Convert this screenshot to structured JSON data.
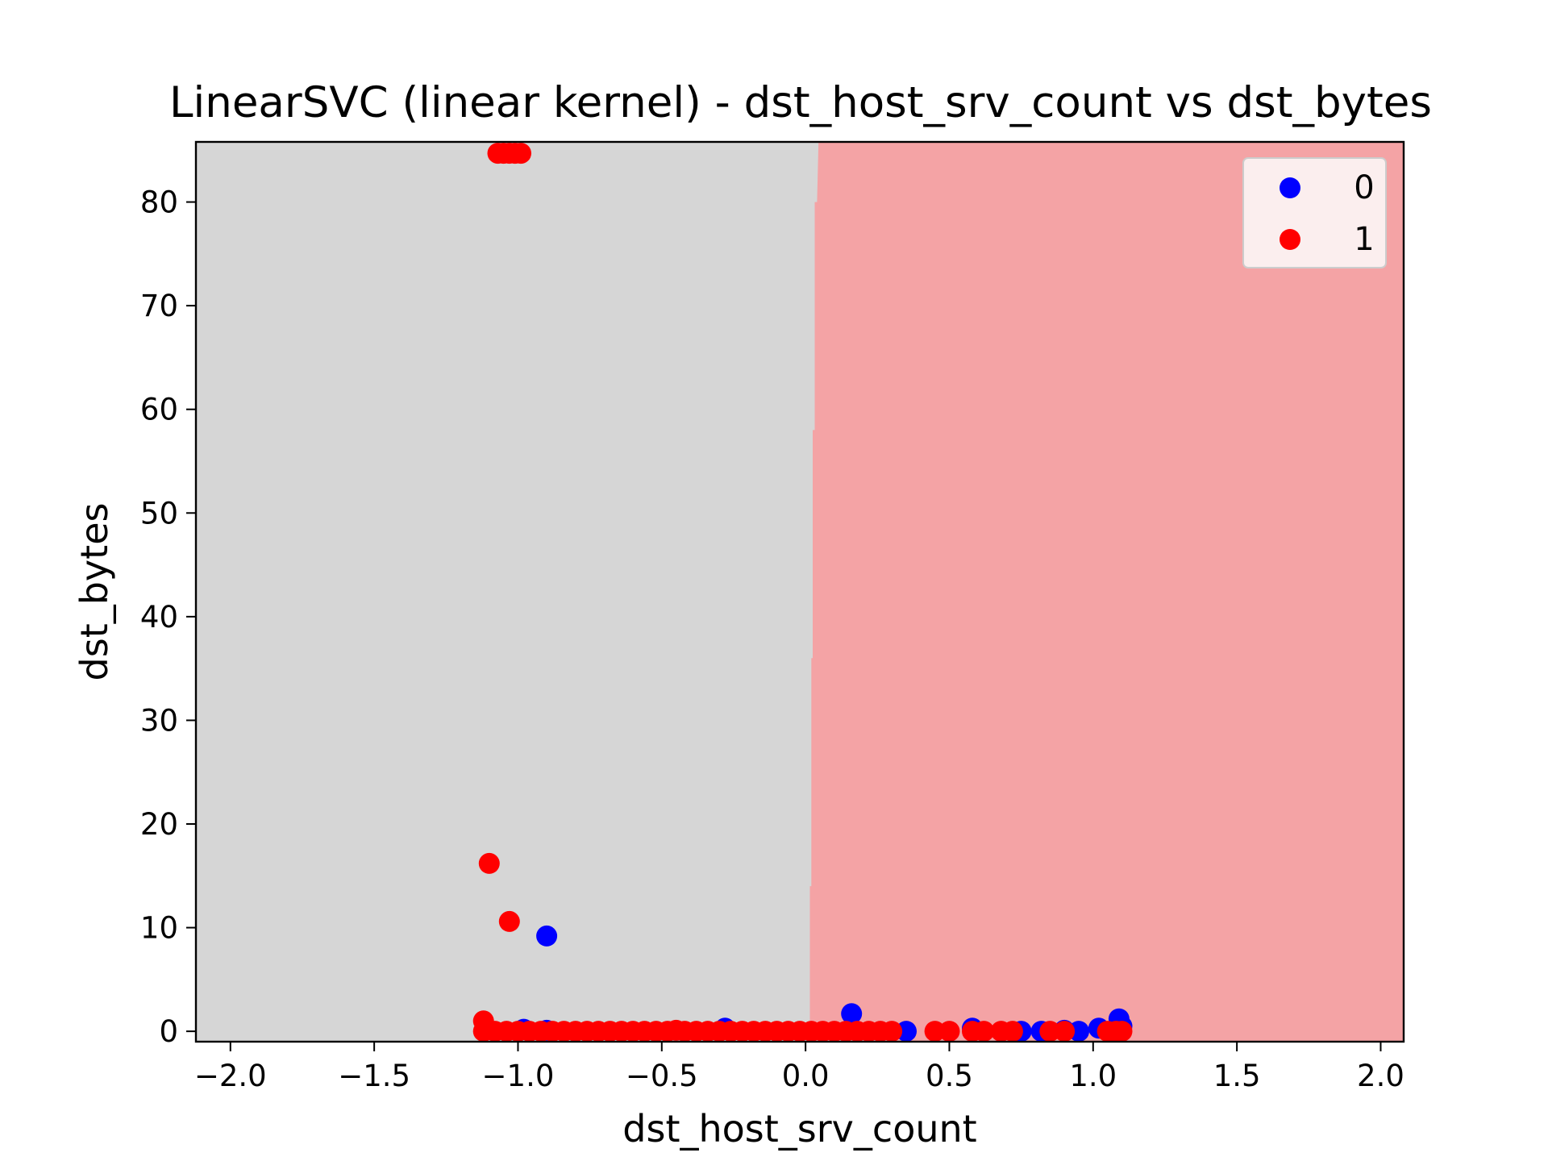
{
  "chart_data": {
    "type": "scatter",
    "title": "LinearSVC (linear kernel) - dst_host_srv_count vs dst_bytes",
    "xlabel": "dst_host_srv_count",
    "ylabel": "dst_bytes",
    "xlim": [
      -2.12,
      2.08
    ],
    "ylim": [
      -1.0,
      85.8
    ],
    "xticks": [
      -2.0,
      -1.5,
      -1.0,
      -0.5,
      0.0,
      0.5,
      1.0,
      1.5,
      2.0
    ],
    "xtick_labels": [
      "−2.0",
      "−1.5",
      "−1.0",
      "−0.5",
      "0.0",
      "0.5",
      "1.0",
      "1.5",
      "2.0"
    ],
    "yticks": [
      0,
      10,
      20,
      30,
      40,
      50,
      60,
      70,
      80
    ],
    "ytick_labels": [
      "0",
      "10",
      "20",
      "30",
      "40",
      "50",
      "60",
      "70",
      "80"
    ],
    "grid": false,
    "legend_position": "top-right",
    "decision_regions": {
      "class_0_color": "#d6d6d6",
      "class_1_color": "#f4a3a5",
      "boundary": [
        [
          0.015,
          -1.0
        ],
        [
          0.015,
          14.0
        ],
        [
          0.02,
          14.0
        ],
        [
          0.02,
          36.0
        ],
        [
          0.025,
          36.0
        ],
        [
          0.025,
          58.0
        ],
        [
          0.032,
          58.0
        ],
        [
          0.032,
          80.0
        ],
        [
          0.04,
          80.0
        ],
        [
          0.045,
          85.8
        ]
      ]
    },
    "series": [
      {
        "name": "0",
        "color": "#0000ff",
        "points": [
          [
            -0.98,
            0.2
          ],
          [
            -0.9,
            0.1
          ],
          [
            -0.9,
            9.2
          ],
          [
            -0.28,
            0.3
          ],
          [
            0.16,
            1.7
          ],
          [
            0.35,
            0.0
          ],
          [
            0.58,
            0.3
          ],
          [
            0.75,
            0.0
          ],
          [
            0.82,
            0.0
          ],
          [
            0.9,
            0.1
          ],
          [
            0.95,
            0.0
          ],
          [
            1.02,
            0.3
          ],
          [
            1.09,
            1.2
          ],
          [
            1.1,
            0.5
          ]
        ]
      },
      {
        "name": "1",
        "color": "#ff0000",
        "points": [
          [
            -1.07,
            84.7
          ],
          [
            -1.05,
            84.7
          ],
          [
            -1.03,
            84.7
          ],
          [
            -1.01,
            84.7
          ],
          [
            -0.99,
            84.7
          ],
          [
            -1.1,
            16.2
          ],
          [
            -1.03,
            10.6
          ],
          [
            -1.12,
            1.0
          ],
          [
            -1.12,
            0.0
          ],
          [
            -1.08,
            0.0
          ],
          [
            -1.04,
            0.0
          ],
          [
            -1.0,
            0.0
          ],
          [
            -0.96,
            0.0
          ],
          [
            -0.92,
            0.0
          ],
          [
            -0.88,
            0.0
          ],
          [
            -0.84,
            0.0
          ],
          [
            -0.8,
            0.0
          ],
          [
            -0.76,
            0.0
          ],
          [
            -0.72,
            0.0
          ],
          [
            -0.68,
            0.0
          ],
          [
            -0.64,
            0.0
          ],
          [
            -0.6,
            0.0
          ],
          [
            -0.56,
            0.0
          ],
          [
            -0.52,
            0.0
          ],
          [
            -0.48,
            0.0
          ],
          [
            -0.45,
            0.1
          ],
          [
            -0.42,
            0.0
          ],
          [
            -0.38,
            0.0
          ],
          [
            -0.34,
            0.0
          ],
          [
            -0.3,
            0.0
          ],
          [
            -0.26,
            0.0
          ],
          [
            -0.22,
            0.0
          ],
          [
            -0.18,
            0.0
          ],
          [
            -0.14,
            0.0
          ],
          [
            -0.1,
            0.0
          ],
          [
            -0.06,
            0.0
          ],
          [
            -0.02,
            0.0
          ],
          [
            0.02,
            0.0
          ],
          [
            0.06,
            0.0
          ],
          [
            0.1,
            0.0
          ],
          [
            0.14,
            0.0
          ],
          [
            0.18,
            0.0
          ],
          [
            0.22,
            0.0
          ],
          [
            0.26,
            0.0
          ],
          [
            0.3,
            0.0
          ],
          [
            0.45,
            0.0
          ],
          [
            0.5,
            0.0
          ],
          [
            0.58,
            0.0
          ],
          [
            0.62,
            0.0
          ],
          [
            0.68,
            0.0
          ],
          [
            0.72,
            0.0
          ],
          [
            0.85,
            0.0
          ],
          [
            0.9,
            0.0
          ],
          [
            1.05,
            0.0
          ],
          [
            1.08,
            0.0
          ],
          [
            1.1,
            0.0
          ]
        ]
      }
    ]
  }
}
